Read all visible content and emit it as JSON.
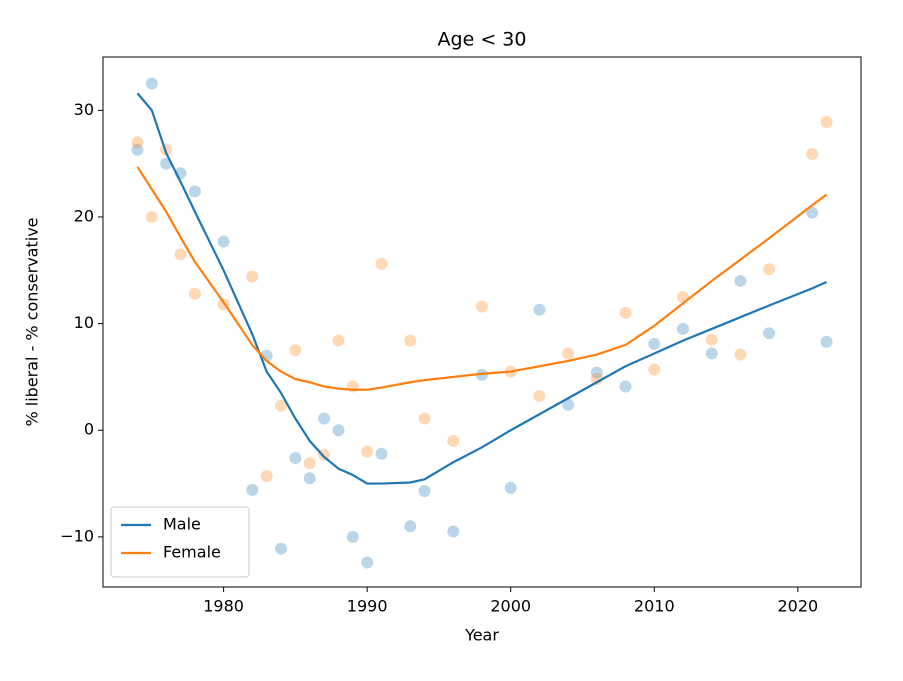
{
  "chart_data": {
    "type": "line",
    "title": "Age < 30",
    "x_label": "Year",
    "y_label": "% liberal - % conservative",
    "x": [
      1974,
      1975,
      1976,
      1977,
      1978,
      1980,
      1982,
      1983,
      1984,
      1985,
      1986,
      1987,
      1988,
      1989,
      1990,
      1991,
      1993,
      1994,
      1996,
      1998,
      2000,
      2002,
      2004,
      2006,
      2008,
      2010,
      2012,
      2014,
      2016,
      2018,
      2021,
      2022
    ],
    "series": [
      {
        "name": "Male",
        "color": "#1f77b4",
        "values": [
          31.6,
          30.0,
          26.0,
          23.3,
          20.5,
          15.0,
          9.0,
          5.5,
          3.5,
          1.1,
          -1.0,
          -2.5,
          -3.6,
          -4.2,
          -5.0,
          -5.0,
          -4.9,
          -4.6,
          -3.0,
          -1.6,
          0.0,
          1.5,
          3.0,
          4.5,
          6.0,
          7.2,
          8.4,
          9.5,
          10.6,
          11.7,
          13.3,
          13.9
        ],
        "points": [
          26.3,
          32.5,
          25.0,
          24.1,
          22.4,
          17.7,
          -5.6,
          7.0,
          -11.1,
          -2.6,
          -4.5,
          1.1,
          0.0,
          -10.0,
          -12.4,
          -2.2,
          -9.0,
          -5.7,
          -9.5,
          5.2,
          -5.4,
          11.3,
          2.4,
          5.4,
          4.1,
          8.1,
          9.5,
          7.2,
          14.0,
          9.1,
          20.4,
          8.3
        ]
      },
      {
        "name": "Female",
        "color": "#ff7f0e",
        "values": [
          24.7,
          22.6,
          20.5,
          18.1,
          15.8,
          12.0,
          8.0,
          6.5,
          5.5,
          4.8,
          4.5,
          4.1,
          3.9,
          3.8,
          3.8,
          4.0,
          4.5,
          4.7,
          5.0,
          5.3,
          5.5,
          6.0,
          6.5,
          7.1,
          8.0,
          9.8,
          11.9,
          14.0,
          16.0,
          18.0,
          21.1,
          22.1
        ],
        "points": [
          27.0,
          20.0,
          26.3,
          16.5,
          12.8,
          11.8,
          14.4,
          -4.3,
          2.3,
          7.5,
          -3.1,
          -2.3,
          8.4,
          4.1,
          -2.0,
          15.6,
          8.4,
          1.1,
          -1.0,
          11.6,
          5.5,
          3.2,
          7.2,
          4.8,
          11.0,
          5.7,
          12.5,
          8.5,
          7.1,
          15.1,
          25.9,
          28.9
        ]
      }
    ],
    "xlim": [
      1971.6,
      2024.4
    ],
    "xticks": [
      1980,
      1990,
      2000,
      2010,
      2020
    ],
    "ylim": [
      -14.7,
      35
    ],
    "yticks": [
      {
        "value": -10,
        "label": "−10"
      },
      0,
      10,
      20,
      30
    ],
    "legend": "lower left"
  }
}
